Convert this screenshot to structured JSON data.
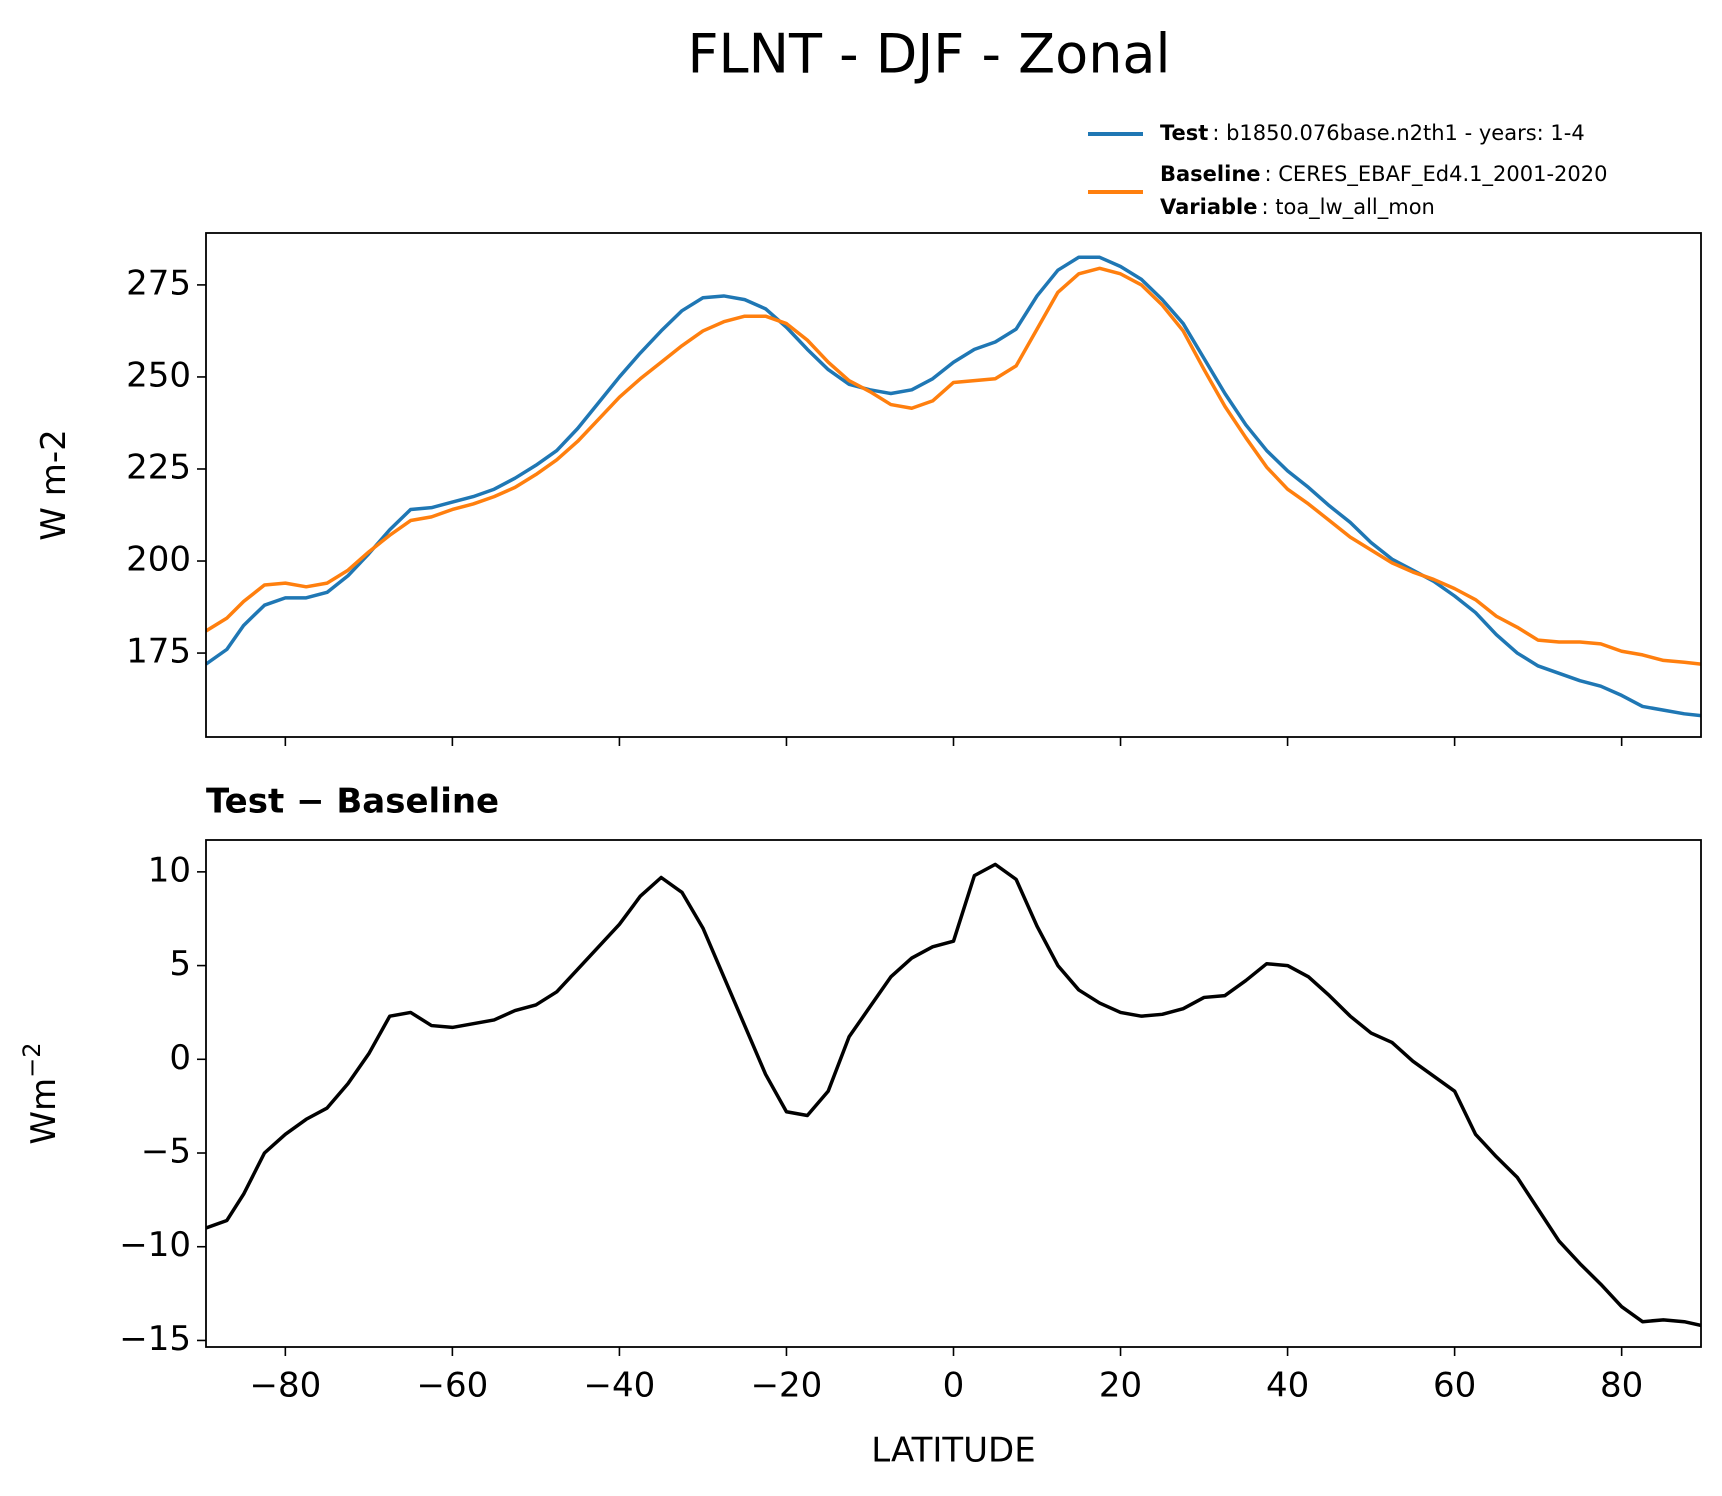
{
  "chart_data": [
    {
      "type": "line",
      "title": "FLNT - DJF - Zonal",
      "ylabel": "W m-2",
      "x": [
        -89.5,
        -87,
        -85,
        -82.5,
        -80,
        -77.5,
        -75,
        -72.5,
        -70,
        -67.5,
        -65,
        -62.5,
        -60,
        -57.5,
        -55,
        -52.5,
        -50,
        -47.5,
        -45,
        -42.5,
        -40,
        -37.5,
        -35,
        -32.5,
        -30,
        -27.5,
        -25,
        -22.5,
        -20,
        -17.5,
        -15,
        -12.5,
        -10,
        -7.5,
        -5,
        -2.5,
        0,
        2.5,
        5,
        7.5,
        10,
        12.5,
        15,
        17.5,
        20,
        22.5,
        25,
        27.5,
        30,
        32.5,
        35,
        37.5,
        40,
        42.5,
        45,
        47.5,
        50,
        52.5,
        55,
        57.5,
        60,
        62.5,
        65,
        67.5,
        70,
        72.5,
        75,
        77.5,
        80,
        82.5,
        85,
        87.5,
        89.5
      ],
      "series": [
        {
          "name": "Test",
          "label": ": b1850.076base.n2th1 - years: 1-4",
          "color": "#1f77b4",
          "values": [
            172,
            176,
            182.5,
            188,
            190,
            190,
            191.5,
            196,
            202,
            208.5,
            214,
            214.5,
            216,
            217.5,
            219.5,
            222.5,
            226,
            230,
            236,
            243,
            250,
            256.5,
            262.5,
            268,
            271.5,
            272,
            271,
            268.5,
            263.5,
            257.5,
            252,
            248,
            246.5,
            245.5,
            246.5,
            249.5,
            254,
            257.5,
            259.5,
            263,
            272,
            279,
            282.5,
            282.5,
            280,
            276.5,
            271,
            264.5,
            255,
            245.5,
            237,
            230,
            224.5,
            220,
            215,
            210.5,
            205,
            200.5,
            197.5,
            194.5,
            190.5,
            186,
            180,
            175,
            171.5,
            169.5,
            167.5,
            166,
            163.5,
            160.5,
            159.5,
            158.5,
            158
          ]
        },
        {
          "name": "Baseline",
          "label": ": CERES_EBAF_Ed4.1_2001-2020",
          "color": "#ff7f0e",
          "values": [
            181,
            184.5,
            189,
            193.5,
            194,
            193,
            194,
            197.5,
            202.5,
            207,
            211,
            212,
            214,
            215.5,
            217.5,
            220,
            223.5,
            227.5,
            232.5,
            238.5,
            244.5,
            249.5,
            254,
            258.5,
            262.5,
            265,
            266.5,
            266.5,
            264.5,
            260,
            254,
            249,
            246,
            242.5,
            241.5,
            243.5,
            248.5,
            249,
            249.5,
            253,
            263,
            273,
            278,
            279.5,
            278,
            275,
            269.5,
            262.5,
            252,
            242,
            233.5,
            225.5,
            219.5,
            215.5,
            211,
            206.5,
            203,
            199.5,
            197,
            195,
            192.5,
            189.5,
            185,
            182,
            178.5,
            178,
            178,
            177.5,
            175.5,
            174.5,
            173,
            172.5,
            172
          ]
        }
      ],
      "legend_extra": [
        {
          "name": "Variable",
          "label": ": toa_lw_all_mon"
        }
      ],
      "xlim": [
        -89.5,
        89.5
      ],
      "xticks": [
        -80,
        -60,
        -40,
        -20,
        0,
        20,
        40,
        60,
        80
      ],
      "xticklabels": false,
      "ylim": [
        152.2,
        289.1
      ],
      "yticks": [
        175,
        200,
        225,
        250,
        275
      ]
    },
    {
      "type": "line",
      "title": "Test − Baseline",
      "ylabel": "Wm",
      "ylabel_superscript": "−2",
      "xlabel": "LATITUDE",
      "x": [
        -89.5,
        -87,
        -85,
        -82.5,
        -80,
        -77.5,
        -75,
        -72.5,
        -70,
        -67.5,
        -65,
        -62.5,
        -60,
        -57.5,
        -55,
        -52.5,
        -50,
        -47.5,
        -45,
        -42.5,
        -40,
        -37.5,
        -35,
        -32.5,
        -30,
        -27.5,
        -25,
        -22.5,
        -20,
        -17.5,
        -15,
        -12.5,
        -10,
        -7.5,
        -5,
        -2.5,
        0,
        2.5,
        5,
        7.5,
        10,
        12.5,
        15,
        17.5,
        20,
        22.5,
        25,
        27.5,
        30,
        32.5,
        35,
        37.5,
        40,
        42.5,
        45,
        47.5,
        50,
        52.5,
        55,
        57.5,
        60,
        62.5,
        65,
        67.5,
        70,
        72.5,
        75,
        77.5,
        80,
        82.5,
        85,
        87.5,
        89.5
      ],
      "series": [
        {
          "color": "#000000",
          "values": [
            -9,
            -8.6,
            -7.2,
            -5,
            -4,
            -3.2,
            -2.6,
            -1.3,
            0.3,
            2.3,
            2.5,
            1.8,
            1.7,
            1.9,
            2.1,
            2.6,
            2.9,
            3.6,
            4.8,
            6,
            7.2,
            8.7,
            9.7,
            8.9,
            7,
            4.4,
            1.8,
            -0.8,
            -2.8,
            -3,
            -1.7,
            1.2,
            2.8,
            4.4,
            5.4,
            6,
            6.3,
            9.8,
            10.4,
            9.6,
            7.1,
            5,
            3.7,
            3,
            2.5,
            2.3,
            2.4,
            2.7,
            3.3,
            3.4,
            4.2,
            5.1,
            5,
            4.4,
            3.4,
            2.3,
            1.4,
            0.9,
            -0.1,
            -0.9,
            -1.7,
            -4,
            -5.2,
            -6.3,
            -8,
            -9.7,
            -10.9,
            -12,
            -13.2,
            -14,
            -13.9,
            -14,
            -14.2
          ]
        }
      ],
      "xlim": [
        -89.5,
        89.5
      ],
      "xticks": [
        {
          "value": -80,
          "label": "−80"
        },
        {
          "value": -60,
          "label": "−60"
        },
        {
          "value": -40,
          "label": "−40"
        },
        {
          "value": -20,
          "label": "−20"
        },
        0,
        20,
        40,
        60,
        80
      ],
      "ylim": [
        -15.35,
        11.7
      ],
      "yticks": [
        {
          "value": -15,
          "label": "−15"
        },
        {
          "value": -10,
          "label": "−10"
        },
        {
          "value": -5,
          "label": "−5"
        },
        0,
        5,
        10
      ]
    }
  ]
}
